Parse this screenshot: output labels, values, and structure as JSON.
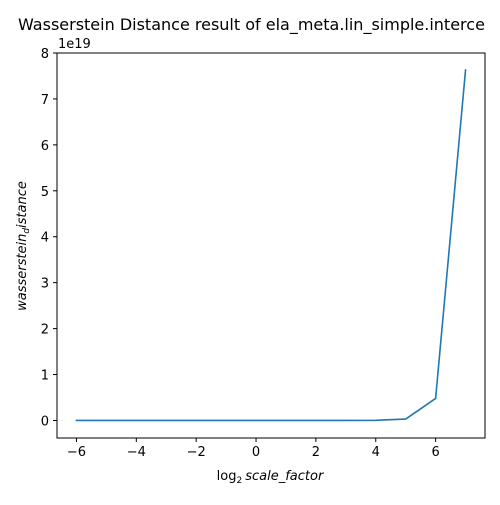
{
  "chart_data": {
    "type": "line",
    "title": "Wasserstein Distance result of ela_meta.lin_simple.interce",
    "xlabel_prefix": "log",
    "xlabel_sub": "2",
    "xlabel_main": "scale_factor",
    "ylabel_main": "wasserstein",
    "ylabel_sub": "d",
    "ylabel_tail": "istance",
    "y_offset_text": "1e19",
    "xlim": [
      -6.65,
      7.65
    ],
    "ylim": [
      -0.382,
      8.0
    ],
    "grid": false,
    "x_ticks": [
      -6,
      -4,
      -2,
      0,
      2,
      4,
      6
    ],
    "x_tick_labels": [
      "−6",
      "−4",
      "−2",
      "0",
      "2",
      "4",
      "6"
    ],
    "y_ticks": [
      0,
      1,
      2,
      3,
      4,
      5,
      6,
      7,
      8
    ],
    "y_tick_labels": [
      "0",
      "1",
      "2",
      "3",
      "4",
      "5",
      "6",
      "7",
      "8"
    ],
    "series": [
      {
        "color": "#1f77b4",
        "x": [
          -6,
          -5,
          -4,
          -3,
          -2,
          -1,
          0,
          1,
          2,
          3,
          4,
          5,
          6,
          7
        ],
        "y": [
          0,
          0,
          0,
          0,
          0,
          0,
          0,
          0,
          0,
          0,
          0.003,
          0.03,
          0.48,
          7.63
        ]
      }
    ]
  }
}
